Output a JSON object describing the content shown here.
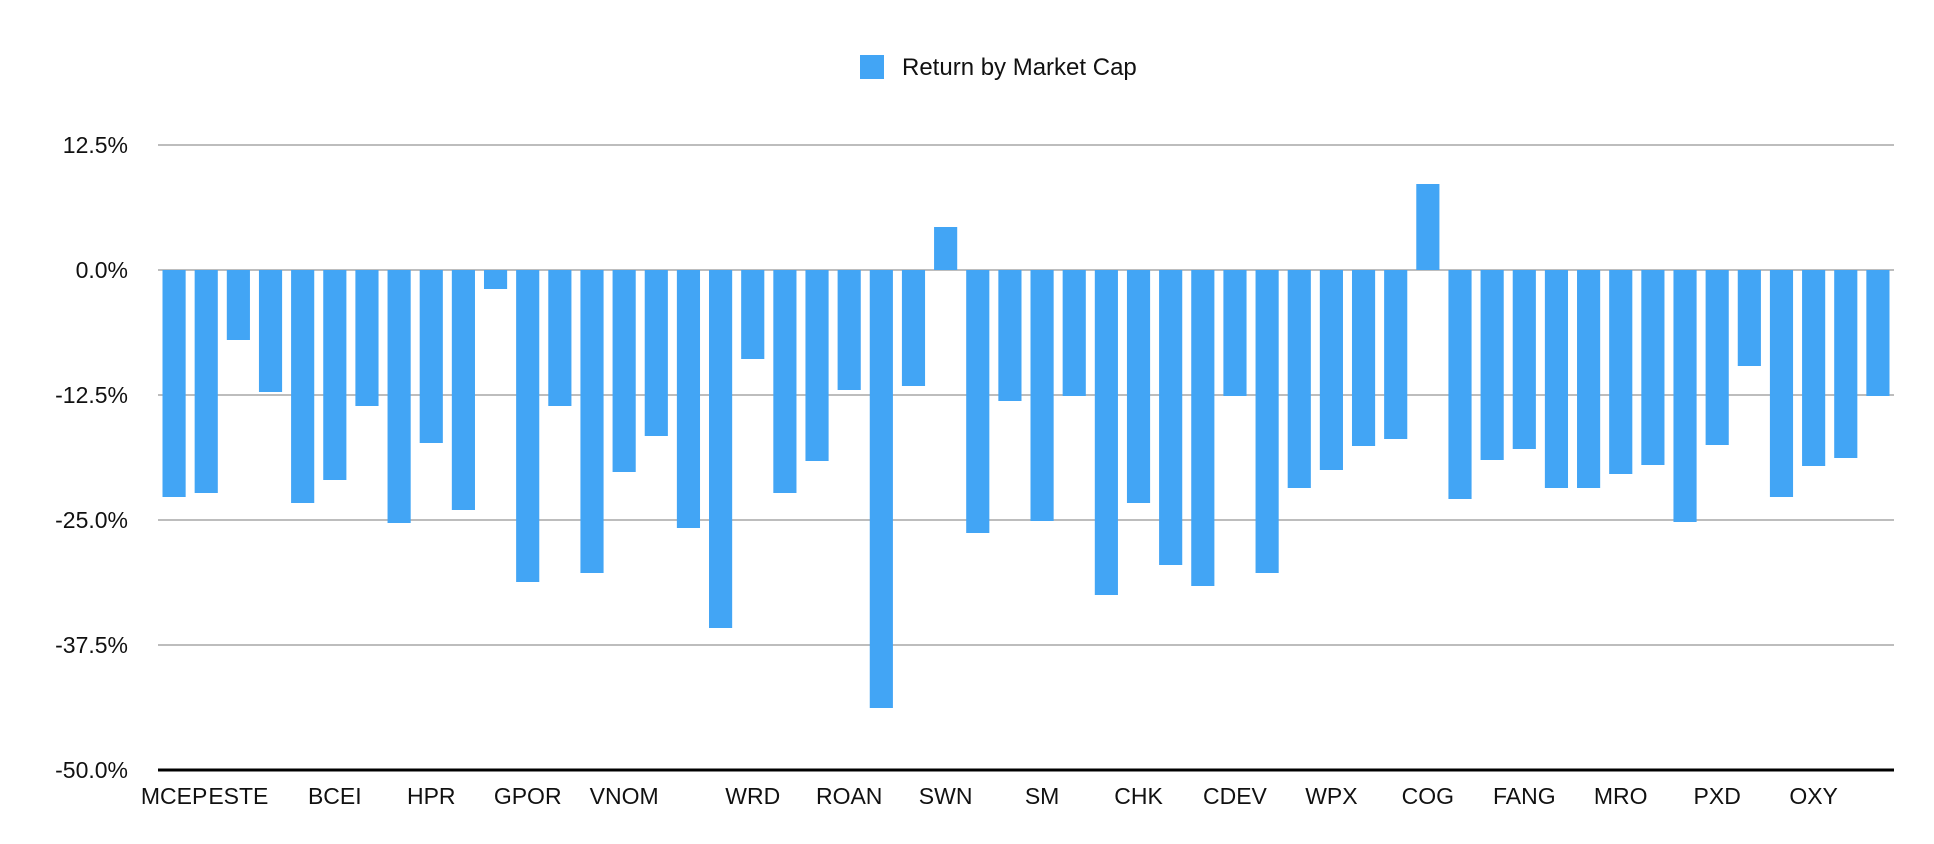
{
  "chart_data": {
    "type": "bar",
    "legend": {
      "entries": [
        "Return by Market Cap"
      ],
      "placement": "top-center"
    },
    "series": [
      {
        "name": "Return by Market Cap",
        "color": "#42A5F5",
        "values": [
          -22.7,
          -22.3,
          -7.0,
          -12.2,
          -23.3,
          -21.0,
          -13.6,
          -25.3,
          -17.3,
          -24.0,
          -1.9,
          -31.2,
          -13.6,
          -30.3,
          -20.2,
          -16.6,
          -25.8,
          -35.8,
          -8.9,
          -22.3,
          -19.1,
          -12.0,
          -43.8,
          -11.6,
          4.3,
          -26.3,
          -13.1,
          -25.1,
          -12.6,
          -32.5,
          -23.3,
          -29.5,
          -31.6,
          -12.6,
          -30.3,
          -21.8,
          -20.0,
          -17.6,
          -16.9,
          8.6,
          -22.9,
          -19.0,
          -17.9,
          -21.8,
          -21.8,
          -20.4,
          -19.5,
          -25.2,
          -17.5,
          -9.6,
          -22.7,
          -19.6,
          -18.8,
          -12.6
        ]
      }
    ],
    "categories": [
      "MCEP",
      "",
      "ESTE",
      "",
      "",
      "BCEI",
      "",
      "",
      "HPR",
      "",
      "",
      "GPOR",
      "",
      "",
      "VNOM",
      "",
      "",
      "",
      "WRD",
      "",
      "",
      "ROAN",
      "",
      "",
      "SWN",
      "",
      "",
      "SM",
      "",
      "",
      "CHK",
      "",
      "",
      "CDEV",
      "",
      "",
      "WPX",
      "",
      "",
      "COG",
      "",
      "",
      "FANG",
      "",
      "",
      "MRO",
      "",
      "",
      "PXD",
      "",
      "",
      "OXY",
      "",
      ""
    ],
    "ylim": [
      -50,
      12.5
    ],
    "yticks": [
      12.5,
      0,
      -12.5,
      -25,
      -37.5,
      -50
    ],
    "ytick_labels": [
      "12.5%",
      "0.0%",
      "-12.5%",
      "-25.0%",
      "-37.5%",
      "-50.0%"
    ],
    "grid": true
  }
}
